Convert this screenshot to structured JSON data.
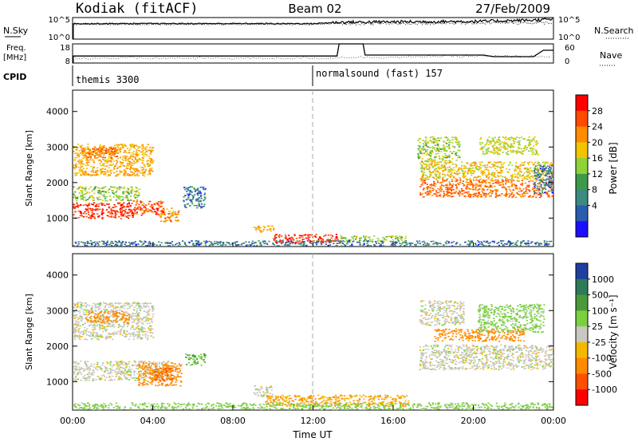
{
  "header": {
    "station": "Kodiak (fitACF)",
    "beam": "Beam 02",
    "date": "27/Feb/2009"
  },
  "noise_panel": {
    "left_label": "N.Sky",
    "right_label": "N.Search",
    "left_ticks": [
      "10^5",
      "10^0"
    ],
    "right_ticks": [
      "10^5",
      "10^0"
    ]
  },
  "freq_panel": {
    "left_label_line1": "Freq.",
    "left_label_line2": "[MHz]",
    "right_label": "Nave",
    "left_ticks": [
      "18",
      "8"
    ],
    "right_ticks": [
      "60",
      "0"
    ]
  },
  "cpid": {
    "label": "CPID",
    "programs": [
      {
        "name": "themis 3300",
        "start_hour": 0
      },
      {
        "name": "normalsound (fast) 157",
        "start_hour": 12
      }
    ]
  },
  "xaxis": {
    "label": "Time UT",
    "ticks": [
      "00:00",
      "04:00",
      "08:00",
      "12:00",
      "16:00",
      "20:00",
      "00:00"
    ]
  },
  "power_colorbar": {
    "label": "Power [dB]",
    "ticks": [
      "28",
      "24",
      "20",
      "16",
      "12",
      "8",
      "4"
    ],
    "colors": [
      "#ff0000",
      "#ff4a00",
      "#ff8c00",
      "#f2c400",
      "#8ed23a",
      "#3c9a4a",
      "#3c8a82",
      "#2a5cb0",
      "#1a10ff"
    ]
  },
  "velocity_colorbar": {
    "label": "Velocity [m s⁻¹]",
    "ticks": [
      "1000",
      "500",
      "100",
      "25",
      "-25",
      "-100",
      "-500",
      "-1000"
    ],
    "colors": [
      "#1f3fa0",
      "#2f7a5a",
      "#4a9a3a",
      "#7ad040",
      "#c8c8c0",
      "#f5b800",
      "#ff8a00",
      "#ff5000",
      "#ff0000"
    ]
  },
  "chart_data": [
    {
      "type": "heatmap",
      "name": "power",
      "ylabel": "Slant Range [km]",
      "xlabel": "Time UT",
      "xlim_hours": [
        0,
        24
      ],
      "ylim": [
        200,
        4600
      ],
      "yticks": [
        1000,
        2000,
        3000,
        4000
      ],
      "scatter_regions": [
        {
          "t": [
            0.0,
            3.0
          ],
          "r": [
            1000,
            1450
          ],
          "dB": 28
        },
        {
          "t": [
            3.0,
            4.6
          ],
          "r": [
            1100,
            1500
          ],
          "dB": 26
        },
        {
          "t": [
            4.3,
            5.3
          ],
          "r": [
            900,
            1300
          ],
          "dB": 22
        },
        {
          "t": [
            0.0,
            3.3
          ],
          "r": [
            1500,
            1900
          ],
          "dB": 14
        },
        {
          "t": [
            0.0,
            4.0
          ],
          "r": [
            2200,
            3100
          ],
          "dB": 20
        },
        {
          "t": [
            0.4,
            2.2
          ],
          "r": [
            2700,
            3000
          ],
          "dB": 24
        },
        {
          "t": [
            5.5,
            6.6
          ],
          "r": [
            1300,
            1900
          ],
          "dB": 6
        },
        {
          "t": [
            9.0,
            10.0
          ],
          "r": [
            600,
            800
          ],
          "dB": 20
        },
        {
          "t": [
            10.0,
            13.3
          ],
          "r": [
            300,
            560
          ],
          "dB": 28
        },
        {
          "t": [
            13.3,
            16.6
          ],
          "r": [
            350,
            520
          ],
          "dB": 14
        },
        {
          "t": [
            0.0,
            24.0
          ],
          "r": [
            230,
            380
          ],
          "dB": 6
        },
        {
          "t": [
            17.3,
            24.0
          ],
          "r": [
            1600,
            2100
          ],
          "dB": 24
        },
        {
          "t": [
            17.3,
            24.0
          ],
          "r": [
            2100,
            2600
          ],
          "dB": 18
        },
        {
          "t": [
            17.2,
            19.3
          ],
          "r": [
            2600,
            3300
          ],
          "dB": 14
        },
        {
          "t": [
            20.3,
            23.2
          ],
          "r": [
            2800,
            3300
          ],
          "dB": 16
        },
        {
          "t": [
            23.0,
            24.0
          ],
          "r": [
            1700,
            2500
          ],
          "dB": 6
        }
      ]
    },
    {
      "type": "heatmap",
      "name": "velocity",
      "ylabel": "Slant Range [km]",
      "xlabel": "Time UT",
      "xlim_hours": [
        0,
        24
      ],
      "ylim": [
        200,
        4600
      ],
      "yticks": [
        1000,
        2000,
        3000,
        4000
      ],
      "scatter_regions": [
        {
          "t": [
            0.0,
            4.8
          ],
          "r": [
            1050,
            1600
          ],
          "v": 0
        },
        {
          "t": [
            0.0,
            4.0
          ],
          "r": [
            2200,
            3250
          ],
          "v": 0
        },
        {
          "t": [
            0.6,
            2.8
          ],
          "r": [
            2650,
            3000
          ],
          "v": -200
        },
        {
          "t": [
            3.2,
            5.4
          ],
          "r": [
            900,
            1550
          ],
          "v": -200
        },
        {
          "t": [
            4.0,
            5.0
          ],
          "r": [
            1050,
            1400
          ],
          "v": -500
        },
        {
          "t": [
            5.6,
            6.6
          ],
          "r": [
            1450,
            1800
          ],
          "v": 150
        },
        {
          "t": [
            9.0,
            10.0
          ],
          "r": [
            600,
            900
          ],
          "v": 0
        },
        {
          "t": [
            9.6,
            16.8
          ],
          "r": [
            320,
            640
          ],
          "v": -150
        },
        {
          "t": [
            0.0,
            24.0
          ],
          "r": [
            220,
            420
          ],
          "v": 60
        },
        {
          "t": [
            17.3,
            24.0
          ],
          "r": [
            1350,
            2050
          ],
          "v": 0
        },
        {
          "t": [
            18.0,
            22.5
          ],
          "r": [
            2150,
            2500
          ],
          "v": -200
        },
        {
          "t": [
            17.3,
            19.5
          ],
          "r": [
            2600,
            3300
          ],
          "v": 0
        },
        {
          "t": [
            20.2,
            23.5
          ],
          "r": [
            2400,
            3200
          ],
          "v": 60
        }
      ]
    },
    {
      "type": "line",
      "name": "noise",
      "series": [
        {
          "name": "N.Sky",
          "x": [
            0,
            12,
            13.3,
            16,
            20,
            23,
            24
          ],
          "y_log10": [
            3.6,
            3.6,
            3.9,
            4.0,
            4.1,
            4.4,
            4.6
          ]
        },
        {
          "name": "N.Search",
          "x": [
            0,
            12,
            13.3,
            24
          ],
          "y_log10": [
            3.4,
            3.4,
            3.6,
            3.8
          ]
        }
      ]
    },
    {
      "type": "line",
      "name": "freq_nave",
      "series": [
        {
          "name": "Freq.",
          "x": [
            0,
            12,
            13.2,
            14.5,
            17.5,
            24
          ],
          "y": [
            10.5,
            10.5,
            11.0,
            11.0,
            11.5,
            11.5
          ]
        },
        {
          "name": "Nave",
          "x": [
            0,
            13.2,
            13.3,
            13.9,
            14.5,
            14.6,
            20.5,
            21.0,
            23.0,
            23.5,
            24
          ],
          "y": [
            22,
            22,
            60,
            60,
            60,
            25,
            25,
            20,
            20,
            40,
            40
          ]
        }
      ]
    }
  ]
}
